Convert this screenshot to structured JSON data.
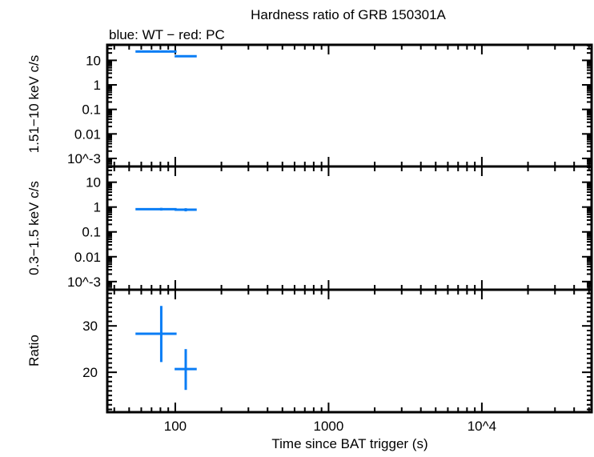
{
  "chart_data": {
    "type": "scatter",
    "title": "Hardness ratio of GRB 150301A",
    "subtitle": "blue: WT − red: PC",
    "xlabel": "Time since BAT trigger (s)",
    "xscale": "log",
    "xlim": [
      36,
      52000
    ],
    "x_ticks": [
      "100",
      "1000",
      "10^4"
    ],
    "colors": {
      "WT": "#0a7df5"
    },
    "grid": false,
    "panels": [
      {
        "ylabel": "1.51−10 keV c/s",
        "yscale": "log",
        "ylim": [
          0.00047,
          43
        ],
        "y_ticks": [
          "10",
          "1",
          "0.1",
          "0.01",
          "10^-3"
        ],
        "points": [
          {
            "x": 81,
            "xlo": 55,
            "xhi": 102,
            "y": 23,
            "ylo": 21.5,
            "yhi": 24.5
          },
          {
            "x": 117,
            "xlo": 99,
            "xhi": 138,
            "y": 14.7,
            "ylo": 13.6,
            "yhi": 15.8
          }
        ]
      },
      {
        "ylabel": "0.3−1.5 keV c/s",
        "yscale": "log",
        "ylim": [
          0.00047,
          43
        ],
        "y_ticks": [
          "10",
          "1",
          "0.1",
          "0.01",
          "10^-3"
        ],
        "points": [
          {
            "x": 81,
            "xlo": 55,
            "xhi": 102,
            "y": 0.82,
            "ylo": 0.72,
            "yhi": 0.93
          },
          {
            "x": 117,
            "xlo": 99,
            "xhi": 138,
            "y": 0.78,
            "ylo": 0.67,
            "yhi": 0.9
          }
        ]
      },
      {
        "ylabel": "Ratio",
        "yscale": "linear",
        "ylim": [
          11.4,
          37.8
        ],
        "y_ticks": [
          "30",
          "20"
        ],
        "points": [
          {
            "x": 81,
            "xlo": 55,
            "xhi": 102,
            "y": 28.3,
            "ylo": 22.2,
            "yhi": 34.3
          },
          {
            "x": 117,
            "xlo": 99,
            "xhi": 138,
            "y": 20.7,
            "ylo": 16.2,
            "yhi": 25
          }
        ]
      }
    ]
  }
}
